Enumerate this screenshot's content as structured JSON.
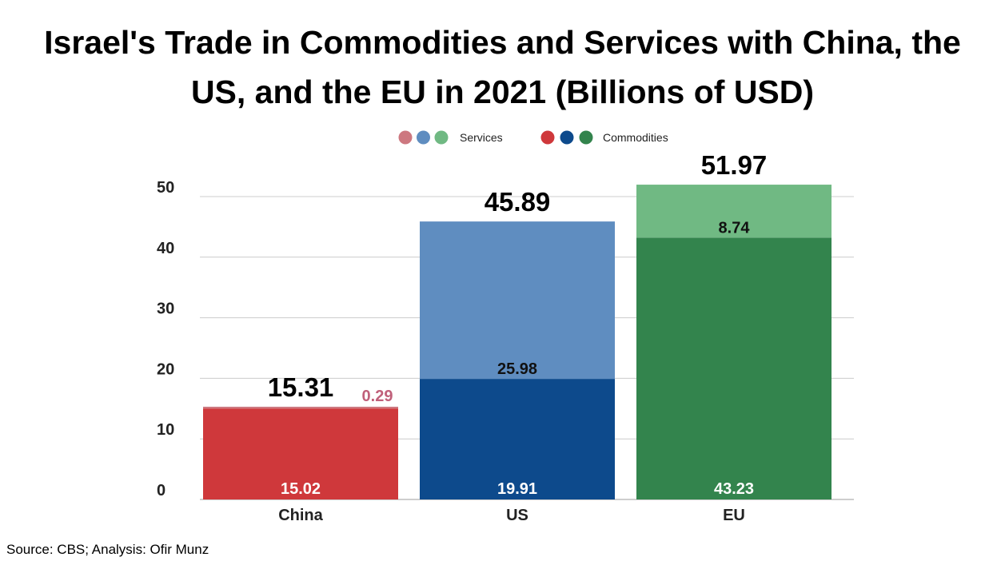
{
  "title_line1": "Israel's Trade in Commodities and Services with China, the",
  "title_line2": "US, and the EU in 2021 (Billions of USD)",
  "source": "Source: CBS; Analysis: Ofir Munz",
  "chart_data": {
    "type": "bar",
    "stacked": true,
    "categories": [
      "China",
      "US",
      "EU"
    ],
    "series": [
      {
        "name": "Commodities",
        "values": [
          15.02,
          19.91,
          43.23
        ],
        "labels": [
          "15.02",
          "19.91",
          "43.23"
        ],
        "colors": [
          "#cf383b",
          "#0d4a8c",
          "#33844d"
        ]
      },
      {
        "name": "Services",
        "values": [
          0.29,
          25.98,
          8.74
        ],
        "labels": [
          "0.29",
          "25.98",
          "8.74"
        ],
        "colors": [
          "#cd7880",
          "#5f8dc0",
          "#70b983"
        ]
      }
    ],
    "totals": [
      15.31,
      45.89,
      51.97
    ],
    "total_labels": [
      "15.31",
      "45.89",
      "51.97"
    ],
    "ylim": [
      0,
      55
    ],
    "yticks": [
      "0",
      "10",
      "20",
      "30",
      "40",
      "50"
    ],
    "ytick_values": [
      0,
      10,
      20,
      30,
      40,
      50
    ],
    "grid": true,
    "legend_position": "top-center",
    "china_services_label_color": "#c0607a"
  }
}
